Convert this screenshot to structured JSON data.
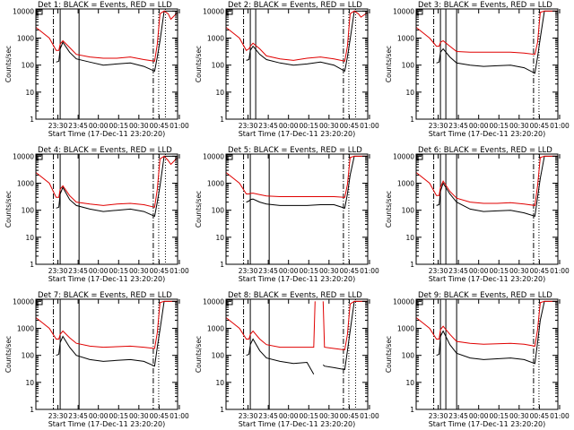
{
  "figure": {
    "xlabel": "Start Time (17-Dec-11 23:20:20)",
    "ylabel": "Counts/sec",
    "xtick_labels": [
      "23:30",
      "23:45",
      "00:00",
      "00:15",
      "00:30",
      "00:45",
      "01:00"
    ],
    "ytick_labels": [
      "1",
      "10",
      "100",
      "1000",
      "10000"
    ],
    "y_scale": "log",
    "colors": {
      "events": "#000000",
      "lld": "#e00000",
      "axes": "#000000"
    }
  },
  "chart_data": [
    {
      "type": "line",
      "title": "Det 1: BLACK = Events, RED = LLD",
      "x": [
        -10,
        0,
        5,
        7,
        8,
        10,
        15,
        20,
        30,
        40,
        50,
        60,
        70,
        78,
        80,
        82,
        85,
        88,
        90,
        95
      ],
      "series": [
        {
          "name": "Events",
          "color": "#000000",
          "values": [
            null,
            null,
            130,
            140,
            400,
            700,
            300,
            170,
            130,
            100,
            110,
            120,
            90,
            60,
            200,
            800,
            10000,
            10000,
            10000,
            10000
          ]
        },
        {
          "name": "LLD",
          "color": "#e00000",
          "values": [
            2500,
            1000,
            350,
            350,
            600,
            800,
            450,
            250,
            200,
            180,
            180,
            200,
            160,
            140,
            600,
            8000,
            10000,
            8000,
            5000,
            9000
          ]
        }
      ],
      "vlines_solid": [
        8,
        22
      ],
      "vlines_dashdot": [
        3,
        77
      ],
      "vlines_dotted": [
        81,
        86
      ],
      "xlim": [
        -10,
        95
      ],
      "ylim": [
        1,
        12000
      ]
    },
    {
      "type": "line",
      "title": "Det 2: BLACK = Events, RED = LLD",
      "x": [
        -10,
        0,
        5,
        7,
        8,
        10,
        15,
        20,
        30,
        40,
        50,
        60,
        70,
        78,
        80,
        82,
        85,
        88,
        90,
        95
      ],
      "series": [
        {
          "name": "Events",
          "color": "#000000",
          "values": [
            null,
            null,
            150,
            160,
            350,
            500,
            250,
            160,
            120,
            100,
            110,
            130,
            100,
            60,
            200,
            900,
            10000,
            10000,
            10000,
            10000
          ]
        },
        {
          "name": "LLD",
          "color": "#e00000",
          "values": [
            2500,
            1000,
            350,
            400,
            500,
            650,
            400,
            220,
            170,
            150,
            180,
            200,
            170,
            140,
            500,
            8000,
            10000,
            8000,
            6000,
            9000
          ]
        }
      ],
      "vlines_solid": [
        8,
        12
      ],
      "vlines_dashdot": [
        3,
        77
      ],
      "vlines_dotted": [
        81,
        86
      ],
      "xlim": [
        -10,
        95
      ],
      "ylim": [
        1,
        12000
      ]
    },
    {
      "type": "line",
      "title": "Det 3: BLACK = Events, RED = LLD",
      "x": [
        -10,
        0,
        5,
        7,
        8,
        10,
        15,
        20,
        30,
        40,
        50,
        60,
        70,
        78,
        80,
        82,
        85,
        88,
        90,
        95
      ],
      "series": [
        {
          "name": "Events",
          "color": "#000000",
          "values": [
            null,
            null,
            120,
            130,
            300,
            400,
            200,
            120,
            100,
            90,
            95,
            100,
            80,
            50,
            200,
            1000,
            10000,
            10000,
            10000,
            10000
          ]
        },
        {
          "name": "LLD",
          "color": "#e00000",
          "values": [
            2500,
            1000,
            500,
            500,
            700,
            800,
            500,
            320,
            300,
            300,
            300,
            300,
            280,
            250,
            700,
            9000,
            10000,
            10000,
            10000,
            10000
          ]
        }
      ],
      "vlines_solid": [
        8,
        12,
        20
      ],
      "vlines_dashdot": [
        3,
        77
      ],
      "vlines_dotted": [
        81
      ],
      "xlim": [
        -10,
        95
      ],
      "ylim": [
        1,
        12000
      ]
    },
    {
      "type": "line",
      "title": "Det 4: BLACK = Events, RED = LLD",
      "x": [
        -10,
        0,
        5,
        7,
        8,
        10,
        15,
        20,
        30,
        40,
        50,
        60,
        70,
        78,
        80,
        82,
        85,
        88,
        90,
        95
      ],
      "series": [
        {
          "name": "Events",
          "color": "#000000",
          "values": [
            null,
            null,
            120,
            130,
            400,
            700,
            250,
            150,
            110,
            90,
            100,
            110,
            90,
            60,
            200,
            800,
            10000,
            10000,
            10000,
            10000
          ]
        },
        {
          "name": "LLD",
          "color": "#e00000",
          "values": [
            2500,
            1000,
            300,
            300,
            600,
            800,
            350,
            200,
            170,
            150,
            170,
            180,
            160,
            130,
            600,
            8000,
            10000,
            7000,
            5000,
            9000
          ]
        }
      ],
      "vlines_solid": [
        8,
        22
      ],
      "vlines_dashdot": [
        3,
        77
      ],
      "vlines_dotted": [
        81,
        86
      ],
      "xlim": [
        -10,
        95
      ],
      "ylim": [
        1,
        12000
      ]
    },
    {
      "type": "line",
      "title": "Det 5: BLACK = Events, RED = LLD",
      "x": [
        -10,
        0,
        5,
        7,
        8,
        10,
        15,
        20,
        30,
        40,
        50,
        60,
        70,
        78,
        80,
        82,
        85,
        88,
        90,
        95
      ],
      "series": [
        {
          "name": "Events",
          "color": "#000000",
          "values": [
            null,
            null,
            200,
            220,
            250,
            260,
            200,
            170,
            150,
            150,
            150,
            160,
            160,
            120,
            400,
            2000,
            10000,
            10000,
            10000,
            10000
          ]
        },
        {
          "name": "LLD",
          "color": "#e00000",
          "values": [
            2500,
            1000,
            400,
            400,
            420,
            430,
            380,
            340,
            320,
            320,
            320,
            320,
            320,
            300,
            900,
            9000,
            10000,
            10000,
            10000,
            10000
          ]
        }
      ],
      "vlines_solid": [
        8,
        22
      ],
      "vlines_dashdot": [
        3,
        77
      ],
      "vlines_dotted": [
        81
      ],
      "xlim": [
        -10,
        95
      ],
      "ylim": [
        1,
        12000
      ]
    },
    {
      "type": "line",
      "title": "Det 6: BLACK = Events, RED = LLD",
      "x": [
        -10,
        0,
        5,
        7,
        8,
        10,
        15,
        20,
        30,
        40,
        50,
        60,
        70,
        78,
        80,
        82,
        85,
        88,
        90,
        95
      ],
      "series": [
        {
          "name": "Events",
          "color": "#000000",
          "values": [
            null,
            null,
            150,
            160,
            500,
            1000,
            400,
            200,
            110,
            90,
            95,
            100,
            80,
            60,
            300,
            1500,
            10000,
            10000,
            10000,
            10000
          ]
        },
        {
          "name": "LLD",
          "color": "#e00000",
          "values": [
            2500,
            1000,
            350,
            350,
            700,
            1200,
            500,
            280,
            200,
            180,
            180,
            190,
            170,
            150,
            800,
            9000,
            10000,
            10000,
            10000,
            10000
          ]
        }
      ],
      "vlines_solid": [
        8,
        12,
        20
      ],
      "vlines_dashdot": [
        3,
        77
      ],
      "vlines_dotted": [
        81
      ],
      "xlim": [
        -10,
        95
      ],
      "ylim": [
        1,
        12000
      ]
    },
    {
      "type": "line",
      "title": "Det 7: BLACK = Events, RED = LLD",
      "x": [
        -10,
        0,
        5,
        7,
        8,
        10,
        15,
        20,
        30,
        40,
        50,
        60,
        70,
        78,
        80,
        82,
        85,
        88,
        90,
        95
      ],
      "series": [
        {
          "name": "Events",
          "color": "#000000",
          "values": [
            null,
            null,
            100,
            110,
            300,
            500,
            200,
            100,
            70,
            60,
            65,
            70,
            60,
            40,
            200,
            900,
            10000,
            10000,
            10000,
            10000
          ]
        },
        {
          "name": "LLD",
          "color": "#e00000",
          "values": [
            2500,
            1000,
            400,
            400,
            600,
            800,
            450,
            280,
            220,
            200,
            210,
            220,
            200,
            180,
            700,
            9000,
            10000,
            10000,
            10000,
            10000
          ]
        }
      ],
      "vlines_solid": [
        8,
        22
      ],
      "vlines_dashdot": [
        3,
        77
      ],
      "vlines_dotted": [
        81
      ],
      "xlim": [
        -10,
        95
      ],
      "ylim": [
        1,
        12000
      ]
    },
    {
      "type": "line",
      "title": "Det 8: BLACK = Events, RED = LLD",
      "x": [
        -10,
        0,
        5,
        7,
        8,
        10,
        15,
        20,
        30,
        40,
        50,
        55,
        56,
        60,
        62,
        63,
        70,
        78,
        80,
        82,
        85,
        88,
        90,
        95
      ],
      "series": [
        {
          "name": "Events",
          "color": "#000000",
          "values": [
            null,
            null,
            100,
            110,
            250,
            400,
            150,
            80,
            60,
            50,
            55,
            20,
            null,
            null,
            45,
            40,
            35,
            30,
            150,
            800,
            10000,
            10000,
            10000,
            10000
          ]
        },
        {
          "name": "LLD",
          "color": "#e00000",
          "values": [
            2500,
            1000,
            400,
            400,
            600,
            800,
            400,
            250,
            200,
            200,
            200,
            200,
            10000,
            null,
            10000,
            200,
            180,
            160,
            600,
            8000,
            10000,
            10000,
            10000,
            10000
          ]
        }
      ],
      "vlines_solid": [
        8,
        22
      ],
      "vlines_dashdot": [
        3,
        77
      ],
      "vlines_dotted": [
        81,
        86
      ],
      "xlim": [
        -10,
        95
      ],
      "ylim": [
        1,
        12000
      ]
    },
    {
      "type": "line",
      "title": "Det 9: BLACK = Events, RED = LLD",
      "x": [
        -10,
        0,
        5,
        7,
        8,
        10,
        15,
        20,
        30,
        40,
        50,
        60,
        70,
        78,
        80,
        82,
        85,
        88,
        90,
        95
      ],
      "series": [
        {
          "name": "Events",
          "color": "#000000",
          "values": [
            null,
            null,
            100,
            110,
            500,
            800,
            250,
            120,
            80,
            70,
            75,
            80,
            70,
            50,
            300,
            2000,
            10000,
            10000,
            10000,
            10000
          ]
        },
        {
          "name": "LLD",
          "color": "#e00000",
          "values": [
            2500,
            1000,
            400,
            400,
            900,
            1200,
            600,
            330,
            280,
            260,
            270,
            280,
            260,
            220,
            900,
            9000,
            10000,
            10000,
            10000,
            10000
          ]
        }
      ],
      "vlines_solid": [
        8,
        12,
        20
      ],
      "vlines_dashdot": [
        3,
        77
      ],
      "vlines_dotted": [
        81
      ],
      "xlim": [
        -10,
        95
      ],
      "ylim": [
        1,
        12000
      ]
    }
  ]
}
